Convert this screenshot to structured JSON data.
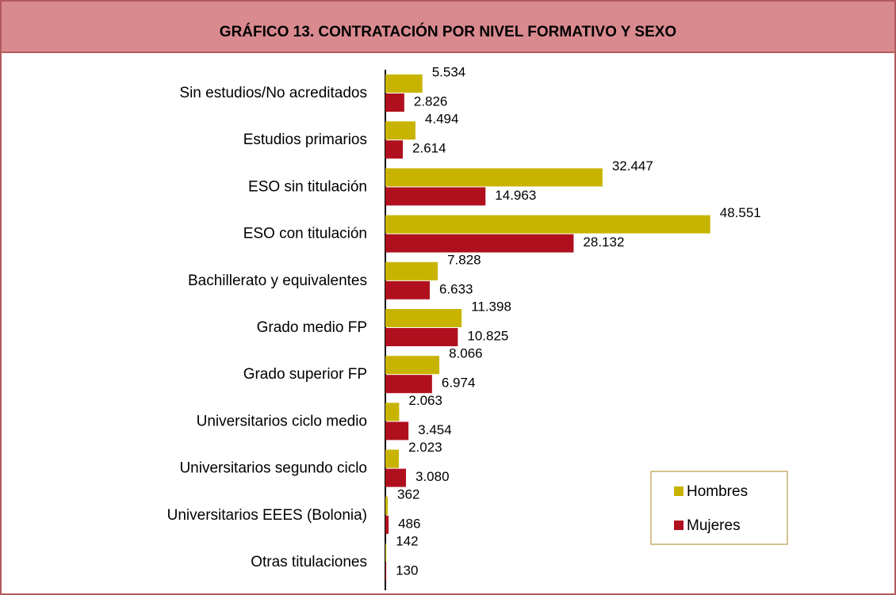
{
  "chart_data": {
    "type": "barh",
    "title": "GRÁFICO 13. CONTRATACIÓN POR NIVEL FORMATIVO Y SEXO",
    "categories": [
      "Sin estudios/No acreditados",
      "Estudios primarios",
      "ESO sin titulación",
      "ESO con titulación",
      "Bachillerato y equivalentes",
      "Grado medio FP",
      "Grado superior FP",
      "Universitarios ciclo medio",
      "Universitarios segundo ciclo",
      "Universitarios EEES (Bolonia)",
      "Otras titulaciones"
    ],
    "series": [
      {
        "name": "Hombres",
        "color": "#c8b400",
        "values": [
          5534,
          4494,
          32447,
          48551,
          7828,
          11398,
          8066,
          2063,
          2023,
          362,
          142
        ],
        "value_labels": [
          "5.534",
          "4.494",
          "32.447",
          "48.551",
          "7.828",
          "11.398",
          "8.066",
          "2.063",
          "2.023",
          "362",
          "142"
        ]
      },
      {
        "name": "Mujeres",
        "color": "#b0101e",
        "values": [
          2826,
          2614,
          14963,
          28132,
          6633,
          10825,
          6974,
          3454,
          3080,
          486,
          130
        ],
        "value_labels": [
          "2.826",
          "2.614",
          "14.963",
          "28.132",
          "6.633",
          "10.825",
          "6.974",
          "3.454",
          "3.080",
          "486",
          "130"
        ]
      }
    ],
    "xlim": [
      0,
      50000
    ],
    "legend": "lower right"
  }
}
